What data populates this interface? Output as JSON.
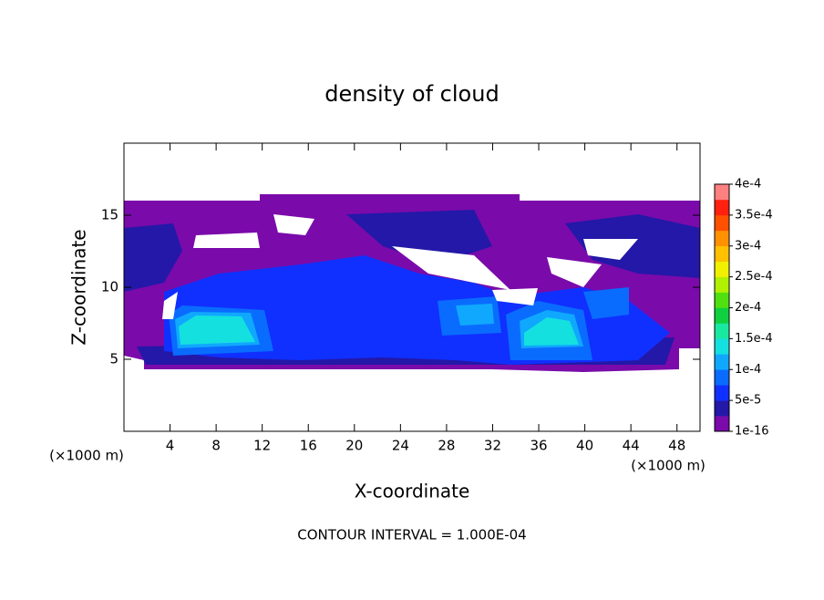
{
  "chart_data": {
    "type": "contour",
    "title": "density of cloud",
    "x_label": "X-coordinate",
    "y_label": "Z-coordinate",
    "x_unit_label": "(×1000 m)",
    "y_unit_label": "(×1000 m)",
    "xlim": [
      0,
      50
    ],
    "xticks": [
      4,
      8,
      12,
      16,
      20,
      24,
      28,
      32,
      36,
      40,
      44,
      48
    ],
    "ylim": [
      0,
      20
    ],
    "yticks": [
      5,
      10,
      15
    ],
    "footnote": "CONTOUR INTERVAL = 1.000E-04",
    "colorbar": {
      "ticks": [
        1e-16,
        {
          "value": 5e-05,
          "label": "5e-5"
        },
        {
          "value": 0.0001,
          "label": "1e-4"
        },
        {
          "value": 0.00015,
          "label": "1.5e-4"
        },
        {
          "value": 0.0002,
          "label": "2e-4"
        },
        {
          "value": 0.00025,
          "label": "2.5e-4"
        },
        {
          "value": 0.0003,
          "label": "3e-4"
        },
        {
          "value": 0.00035,
          "label": "3.5e-4"
        },
        {
          "value": 0.0004,
          "label": "4e-4"
        }
      ],
      "colors": [
        "#7a0aaa",
        "#2418a8",
        "#1030ff",
        "#0a6cff",
        "#10a8ff",
        "#14e0e0",
        "#18e8a0",
        "#10d040",
        "#50e010",
        "#b0f000",
        "#f0f000",
        "#ffc000",
        "#ff9000",
        "#ff5000",
        "#ff2010",
        "#ff8080"
      ]
    }
  }
}
